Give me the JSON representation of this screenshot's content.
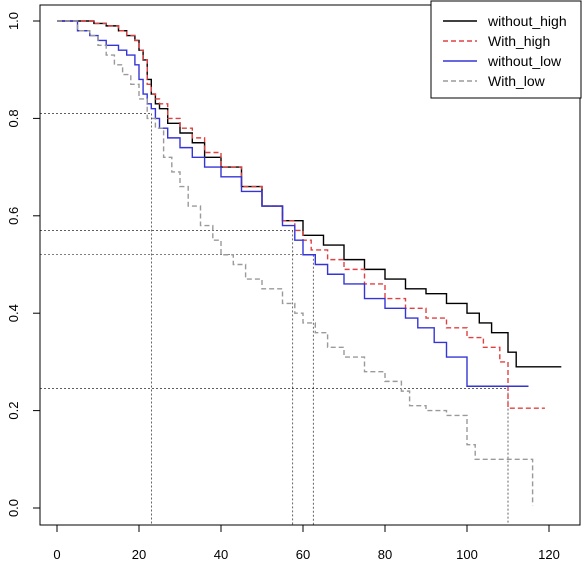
{
  "chart_data": {
    "type": "line",
    "subtype": "step",
    "title": "",
    "xlabel": "",
    "ylabel": "",
    "xlim": [
      0,
      123
    ],
    "ylim": [
      0,
      1
    ],
    "x_ticks": [
      "0",
      "20",
      "40",
      "60",
      "80",
      "100",
      "120"
    ],
    "y_ticks": [
      "0.0",
      "0.2",
      "0.4",
      "0.6",
      "0.8",
      "1.0"
    ],
    "grid": false,
    "legend_position": "top-right",
    "series": [
      {
        "name": "without_high",
        "color": "#000000",
        "dash": "solid",
        "x": [
          0,
          9,
          12,
          15,
          17,
          19,
          20,
          21,
          22,
          23,
          24,
          25,
          27,
          30,
          33,
          36,
          40,
          45,
          50,
          55,
          60,
          65,
          70,
          75,
          80,
          85,
          90,
          95,
          100,
          103,
          106,
          110,
          112,
          123
        ],
        "y": [
          1.0,
          0.995,
          0.99,
          0.98,
          0.97,
          0.96,
          0.94,
          0.92,
          0.88,
          0.85,
          0.83,
          0.82,
          0.79,
          0.77,
          0.75,
          0.72,
          0.7,
          0.66,
          0.62,
          0.59,
          0.56,
          0.54,
          0.51,
          0.49,
          0.47,
          0.45,
          0.44,
          0.42,
          0.4,
          0.38,
          0.36,
          0.32,
          0.29,
          0.29
        ]
      },
      {
        "name": "With_high",
        "color": "#e04040",
        "dash": "dashed",
        "x": [
          0,
          9,
          12,
          15,
          17,
          19,
          20,
          21,
          22,
          23,
          24,
          25,
          27,
          30,
          33,
          36,
          40,
          45,
          50,
          55,
          58,
          60,
          62,
          66,
          70,
          75,
          80,
          85,
          90,
          95,
          100,
          104,
          108,
          110,
          119
        ],
        "y": [
          1.0,
          0.995,
          0.99,
          0.98,
          0.97,
          0.96,
          0.94,
          0.92,
          0.87,
          0.85,
          0.84,
          0.83,
          0.8,
          0.78,
          0.76,
          0.73,
          0.7,
          0.66,
          0.62,
          0.59,
          0.57,
          0.55,
          0.53,
          0.51,
          0.49,
          0.46,
          0.43,
          0.41,
          0.39,
          0.37,
          0.35,
          0.33,
          0.3,
          0.205,
          0.205
        ]
      },
      {
        "name": "without_low",
        "color": "#3535d6",
        "dash": "solid",
        "x": [
          0,
          5,
          8,
          10,
          12,
          15,
          17,
          19,
          20,
          21,
          22,
          23,
          24,
          25,
          27,
          30,
          33,
          36,
          40,
          45,
          50,
          55,
          58,
          60,
          63,
          66,
          70,
          75,
          80,
          85,
          88,
          92,
          95,
          100,
          115
        ],
        "y": [
          1.0,
          0.98,
          0.97,
          0.96,
          0.95,
          0.94,
          0.93,
          0.91,
          0.88,
          0.85,
          0.83,
          0.82,
          0.8,
          0.78,
          0.76,
          0.74,
          0.72,
          0.7,
          0.68,
          0.65,
          0.62,
          0.58,
          0.55,
          0.52,
          0.5,
          0.48,
          0.46,
          0.43,
          0.41,
          0.39,
          0.37,
          0.34,
          0.31,
          0.25,
          0.25
        ]
      },
      {
        "name": "With_low",
        "color": "#9a9a9a",
        "dash": "dashed",
        "x": [
          0,
          5,
          8,
          10,
          12,
          14,
          16,
          18,
          20,
          22,
          24,
          26,
          28,
          30,
          32,
          35,
          38,
          40,
          43,
          46,
          50,
          55,
          58,
          60,
          63,
          66,
          70,
          75,
          80,
          84,
          86,
          90,
          95,
          100,
          102,
          110,
          116
        ],
        "y": [
          1.0,
          0.98,
          0.97,
          0.95,
          0.93,
          0.91,
          0.89,
          0.87,
          0.84,
          0.8,
          0.78,
          0.72,
          0.69,
          0.66,
          0.62,
          0.58,
          0.55,
          0.52,
          0.5,
          0.47,
          0.45,
          0.42,
          0.4,
          0.38,
          0.36,
          0.33,
          0.31,
          0.28,
          0.26,
          0.24,
          0.21,
          0.2,
          0.19,
          0.13,
          0.1,
          0.1,
          0.005
        ]
      }
    ],
    "reference_lines": [
      {
        "x": 23,
        "y": 0.81
      },
      {
        "x": 57.5,
        "y": 0.57
      },
      {
        "x": 62.5,
        "y": 0.52
      },
      {
        "x": 110,
        "y": 0.245
      }
    ]
  }
}
